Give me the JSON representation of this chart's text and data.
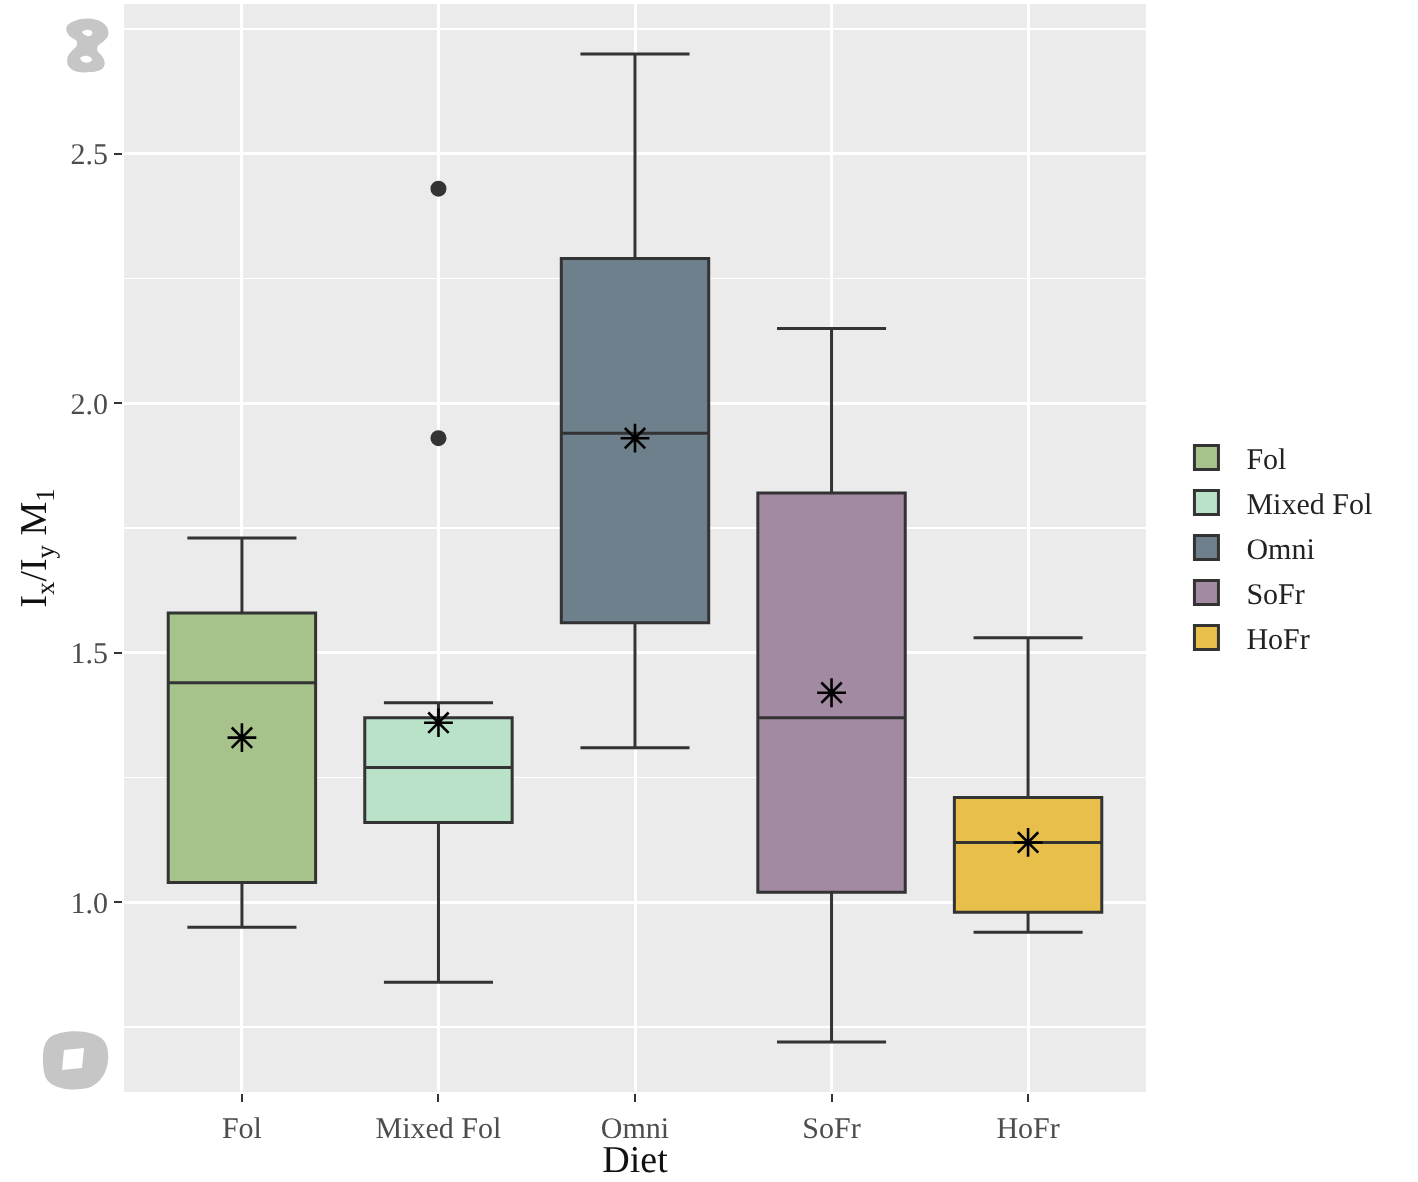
{
  "chart_data": {
    "type": "box",
    "xlabel": "Diet",
    "ylabel": "I$_{x}$/I$_{y}$ M$_{1}$",
    "categories": [
      "Fol",
      "Mixed Fol",
      "Omni",
      "SoFr",
      "HoFr"
    ],
    "series": [
      {
        "name": "Fol",
        "color": "#a7c28b",
        "boxes": [
          {
            "low": 0.95,
            "q1": 1.04,
            "median": 1.44,
            "q3": 1.58,
            "high": 1.73,
            "mean": 1.33
          },
          null,
          null,
          null,
          null
        ]
      },
      {
        "name": "Mixed Fol",
        "color": "#b9e2c8",
        "boxes": [
          null,
          {
            "low": 0.84,
            "q1": 1.16,
            "median": 1.27,
            "q3": 1.37,
            "high": 1.4,
            "mean": 1.36,
            "outliers": [
              2.43,
              1.93
            ]
          },
          null,
          null,
          null
        ]
      },
      {
        "name": "Omni",
        "color": "#6e808b",
        "boxes": [
          null,
          null,
          {
            "low": 1.31,
            "q1": 1.56,
            "median": 1.94,
            "q3": 2.29,
            "high": 2.7,
            "mean": 1.93
          },
          null,
          null
        ]
      },
      {
        "name": "SoFr",
        "color": "#a38aa3",
        "boxes": [
          null,
          null,
          null,
          {
            "low": 0.72,
            "q1": 1.02,
            "median": 1.37,
            "q3": 1.82,
            "high": 2.15,
            "mean": 1.42
          },
          null
        ]
      },
      {
        "name": "HoFr",
        "color": "#e8bf4a",
        "boxes": [
          null,
          null,
          null,
          null,
          {
            "low": 0.94,
            "q1": 0.98,
            "median": 1.12,
            "q3": 1.21,
            "high": 1.53,
            "mean": 1.12
          }
        ]
      }
    ],
    "ylim": [
      0.62,
      2.8
    ],
    "yticks": [
      {
        "value": 1,
        "label": "1.0"
      },
      1.5,
      {
        "value": 2,
        "label": "2.0"
      },
      2.5
    ],
    "grid": true,
    "legend": "right",
    "marker": "circle"
  }
}
